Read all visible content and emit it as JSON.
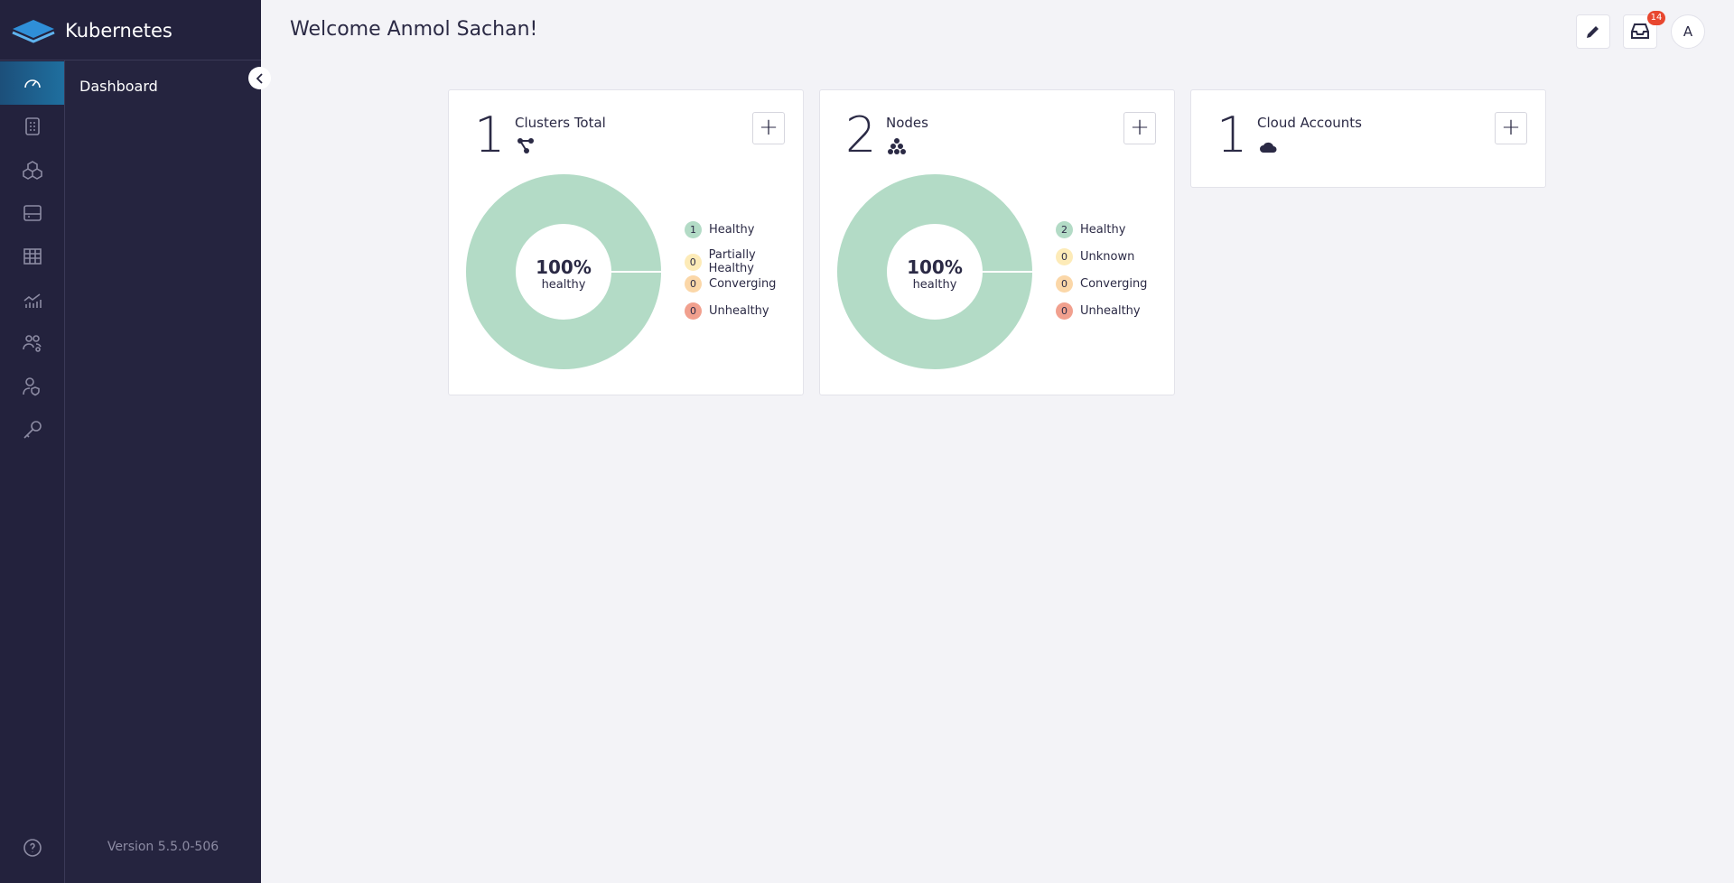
{
  "sidebar": {
    "brand": "Kubernetes",
    "menu": [
      "Dashboard"
    ],
    "version": "Version 5.5.0-506"
  },
  "header": {
    "title": "Welcome Anmol Sachan!",
    "notifications": 14,
    "avatar": "A"
  },
  "cards": [
    {
      "count": 1,
      "label": "Clusters Total",
      "icon": "clusters",
      "donut": {
        "percent": "100%",
        "caption": "healthy"
      },
      "legend": [
        {
          "count": 1,
          "label": "Healthy",
          "color": "#b3dbc6"
        },
        {
          "count": 0,
          "label": "Partially Healthy",
          "color": "#fdebb8"
        },
        {
          "count": 0,
          "label": "Converging",
          "color": "#fbd7a8"
        },
        {
          "count": 0,
          "label": "Unhealthy",
          "color": "#f1a08e"
        }
      ]
    },
    {
      "count": 2,
      "label": "Nodes",
      "icon": "nodes",
      "donut": {
        "percent": "100%",
        "caption": "healthy"
      },
      "legend": [
        {
          "count": 2,
          "label": "Healthy",
          "color": "#b3dbc6"
        },
        {
          "count": 0,
          "label": "Unknown",
          "color": "#fdebb8"
        },
        {
          "count": 0,
          "label": "Converging",
          "color": "#fbd7a8"
        },
        {
          "count": 0,
          "label": "Unhealthy",
          "color": "#f1a08e"
        }
      ]
    },
    {
      "count": 1,
      "label": "Cloud Accounts",
      "icon": "cloud"
    }
  ]
}
